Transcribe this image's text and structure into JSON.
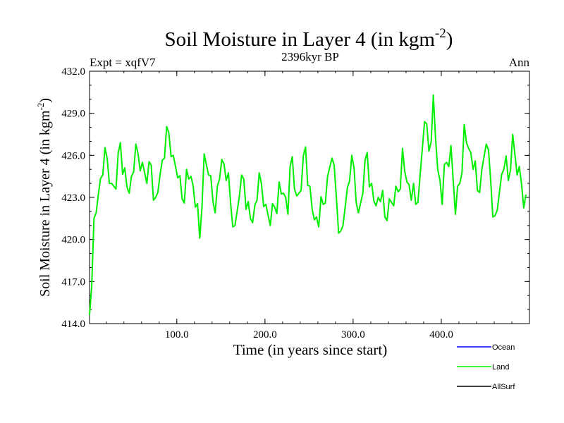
{
  "chart_data": {
    "type": "line",
    "title": "Soil Moisture in Layer 4 (in kgm",
    "title_sup": "-2",
    "title_end": ")",
    "subtitle": "2396kyr BP",
    "left_label": "Expt = xqfV7",
    "right_label": "Ann",
    "xlabel": "Time (in years since start)",
    "ylabel": "Soil Moisture in Layer 4 (in kgm",
    "ylabel_sup": "-2",
    "ylabel_end": ")",
    "xlim": [
      1,
      500
    ],
    "ylim": [
      414.0,
      432.0
    ],
    "x_ticks": [
      100,
      200,
      300,
      400
    ],
    "x_tick_labels": [
      "100.0",
      "200.0",
      "300.0",
      "400.0"
    ],
    "y_ticks": [
      414,
      417,
      420,
      423,
      426,
      429,
      432
    ],
    "y_tick_labels": [
      "414.0",
      "417.0",
      "420.0",
      "423.0",
      "426.0",
      "429.0",
      "432.0"
    ],
    "legend_position": "bottom-right",
    "legend": [
      {
        "name": "Ocean",
        "color": "#0000ff"
      },
      {
        "name": "Land",
        "color": "#00ee00"
      },
      {
        "name": "AllSurf",
        "color": "#000000"
      }
    ],
    "series": [
      {
        "name": "Land",
        "color": "#00ee00",
        "x_start": 1,
        "x_step": 5,
        "values": [
          414.6,
          421.5,
          423.2,
          424.6,
          425.8,
          424.0,
          423.6,
          426.9,
          425.1,
          423.3,
          424.8,
          426.1,
          425.5,
          424.0,
          425.3,
          423.0,
          424.6,
          425.8,
          427.6,
          426.0,
          424.4,
          422.9,
          425.0,
          424.5,
          422.3,
          420.1,
          426.1,
          424.6,
          422.7,
          423.8,
          425.7,
          424.2,
          422.6,
          421.0,
          423.1,
          424.3,
          422.7,
          421.2,
          422.8,
          424.0,
          422.5,
          421.0,
          422.3,
          424.1,
          423.3,
          421.8,
          425.9,
          423.1,
          423.5,
          426.6,
          423.8,
          421.4,
          420.9,
          422.5,
          424.5,
          425.8,
          423.0,
          420.6,
          422.3,
          424.2,
          425.1,
          421.9,
          423.3,
          426.2,
          424.0,
          422.4,
          422.7,
          421.6,
          422.9,
          422.4,
          423.4,
          426.5,
          424.1,
          422.8,
          422.5,
          424.6,
          428.4,
          426.3,
          430.3,
          425.0,
          422.5,
          425.5,
          426.7,
          421.8,
          424.0,
          428.2,
          426.5,
          425.0,
          423.5,
          425.0,
          426.8,
          424.2,
          421.7,
          423.4,
          425.0,
          424.2,
          427.5,
          424.6,
          424.0,
          423.2
        ]
      }
    ]
  }
}
